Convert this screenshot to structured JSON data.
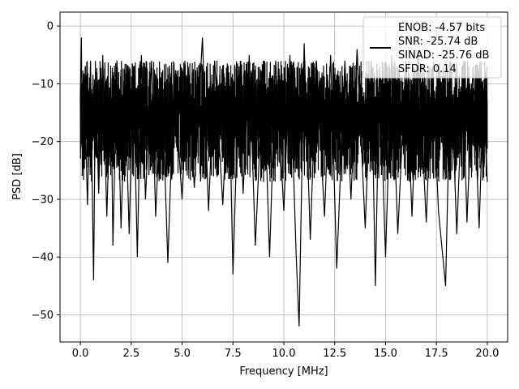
{
  "chart_data": {
    "type": "line",
    "title": "",
    "xlabel": "Frequency [MHz]",
    "ylabel": "PSD [dB]",
    "xlim": [
      -1.0,
      21.0
    ],
    "ylim": [
      -54.7,
      2.4
    ],
    "x_ticks": [
      0.0,
      2.5,
      5.0,
      7.5,
      10.0,
      12.5,
      15.0,
      17.5,
      20.0
    ],
    "x_tick_labels": [
      "0.0",
      "2.5",
      "5.0",
      "7.5",
      "10.0",
      "12.5",
      "15.0",
      "17.5",
      "20.0"
    ],
    "y_ticks": [
      0,
      -10,
      -20,
      -30,
      -40,
      -50
    ],
    "y_tick_labels": [
      "0",
      "−10",
      "−20",
      "−30",
      "−40",
      "−50"
    ],
    "grid": true,
    "legend_position": "top-right",
    "legend_entries": [
      "ENOB: -4.57 bits",
      "SNR: -25.74 dB",
      "SINAD: -25.76 dB",
      "SFDR: 0.14"
    ],
    "series": [
      {
        "color": "#000000",
        "x": [
          0.0,
          0.05,
          0.1,
          0.2,
          0.35,
          0.5,
          0.65,
          0.75,
          0.9,
          1.1,
          1.3,
          1.5,
          1.6,
          1.8,
          2.0,
          2.2,
          2.4,
          2.6,
          2.8,
          3.0,
          3.2,
          3.5,
          3.7,
          4.0,
          4.3,
          4.6,
          5.0,
          5.3,
          5.6,
          6.0,
          6.3,
          6.6,
          7.0,
          7.3,
          7.5,
          7.8,
          8.0,
          8.3,
          8.6,
          9.0,
          9.3,
          9.6,
          10.0,
          10.3,
          10.6,
          10.75,
          11.0,
          11.3,
          11.6,
          12.0,
          12.3,
          12.6,
          13.0,
          13.3,
          13.6,
          14.0,
          14.3,
          14.5,
          14.7,
          15.0,
          15.3,
          15.6,
          16.0,
          16.3,
          16.6,
          17.0,
          17.3,
          17.6,
          17.95,
          18.2,
          18.5,
          18.8,
          19.0,
          19.3,
          19.6,
          19.8,
          20.0
        ],
        "y": [
          -12,
          -2,
          -25,
          -10,
          -31,
          -6,
          -44,
          -8,
          -29,
          -5,
          -33,
          -9,
          -38,
          -6,
          -35,
          -11,
          -36,
          -7,
          -40,
          -5,
          -30,
          -6,
          -33,
          -8,
          -41,
          -9,
          -30,
          -7,
          -28,
          -2,
          -32,
          -6,
          -31,
          -8,
          -43,
          -7,
          -29,
          -5,
          -38,
          -6,
          -40,
          -6,
          -32,
          -5,
          -39,
          -52,
          -3,
          -37,
          -6,
          -33,
          -5,
          -42,
          -6,
          -30,
          -4,
          -35,
          -6,
          -45,
          -7,
          -40,
          -5,
          -36,
          -6,
          -33,
          -4,
          -34,
          -7,
          -32,
          -45,
          -6,
          -36,
          -8,
          -34,
          -7,
          -35,
          -12,
          -27
        ]
      }
    ]
  }
}
